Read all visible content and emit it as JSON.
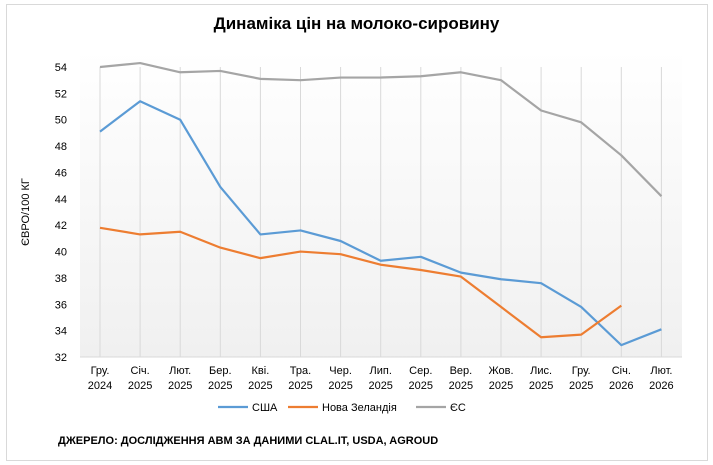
{
  "chart_data": {
    "type": "line",
    "title": "Динаміка цін на молоко-сировину",
    "ylabel": "ЄВРО/100 КГ",
    "xlabel": "",
    "ylim": [
      32,
      54
    ],
    "yticks": [
      32,
      34,
      36,
      38,
      40,
      42,
      44,
      46,
      48,
      50,
      52,
      54
    ],
    "grid": "vertical",
    "legend_position": "bottom",
    "categories": [
      [
        "Гру.",
        "2024"
      ],
      [
        "Січ.",
        "2025"
      ],
      [
        "Лют.",
        "2025"
      ],
      [
        "Бер.",
        "2025"
      ],
      [
        "Кві.",
        "2025"
      ],
      [
        "Тра.",
        "2025"
      ],
      [
        "Чер.",
        "2025"
      ],
      [
        "Лип.",
        "2025"
      ],
      [
        "Сер.",
        "2025"
      ],
      [
        "Вер.",
        "2025"
      ],
      [
        "Жов.",
        "2025"
      ],
      [
        "Лис.",
        "2025"
      ],
      [
        "Гру.",
        "2025"
      ],
      [
        "Січ.",
        "2026"
      ],
      [
        "Лют.",
        "2026"
      ]
    ],
    "series": [
      {
        "name": "США",
        "color": "#5b9bd5",
        "values": [
          49.1,
          51.4,
          50.0,
          44.9,
          41.3,
          41.6,
          40.8,
          39.3,
          39.6,
          38.4,
          37.9,
          37.6,
          35.8,
          32.9,
          34.1
        ]
      },
      {
        "name": "Нова Зеландія",
        "color": "#ed7d31",
        "values": [
          41.8,
          41.3,
          41.5,
          40.3,
          39.5,
          40.0,
          39.8,
          39.0,
          38.6,
          38.1,
          35.8,
          33.5,
          33.7,
          35.9,
          null
        ]
      },
      {
        "name": "ЄС",
        "color": "#a5a5a5",
        "values": [
          54.0,
          54.3,
          53.6,
          53.7,
          53.1,
          53.0,
          53.2,
          53.2,
          53.3,
          53.6,
          53.0,
          50.7,
          49.8,
          47.3,
          44.2
        ]
      }
    ],
    "source": "ДЖЕРЕЛО: ДОСЛІДЖЕННЯ АВМ ЗА ДАНИМИ CLAL.IT, USDA, AGROUD"
  }
}
